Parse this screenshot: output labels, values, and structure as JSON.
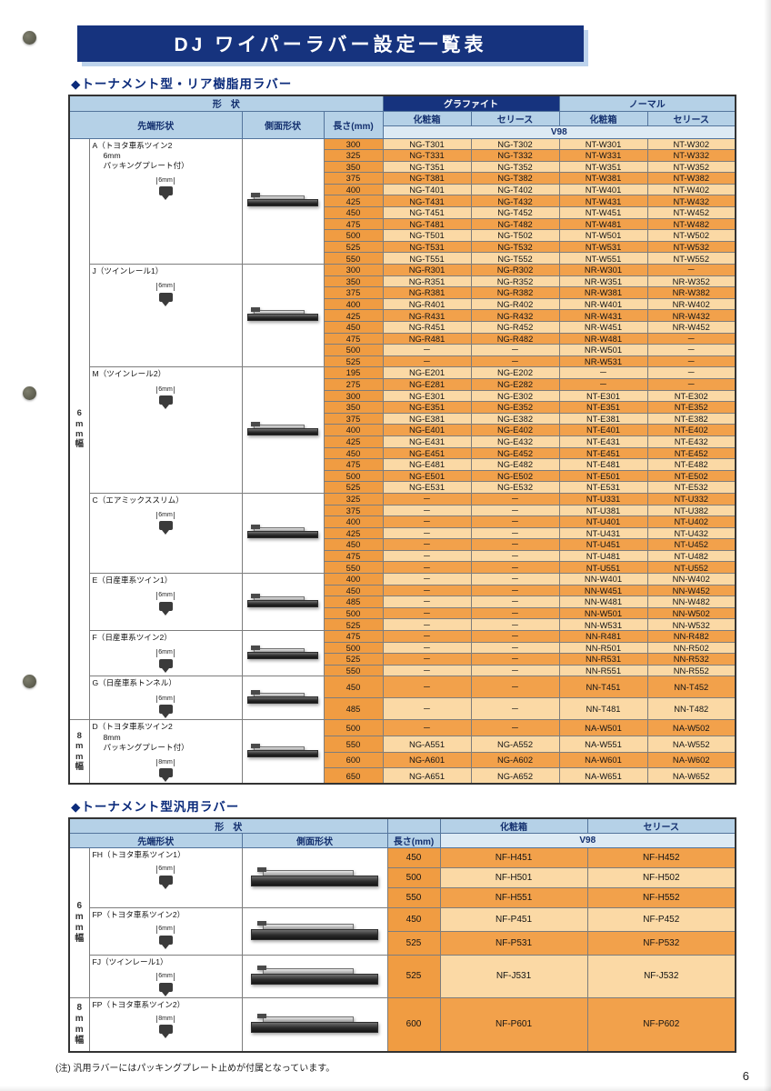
{
  "page": {
    "title": "DJ ワイパーラバー設定一覧表",
    "page_number": "6",
    "footnote": "(注) 汎用ラバーにはパッキングプレート止めが付属となっています。"
  },
  "colors": {
    "banner_bg": "#16337e",
    "header_bg": "#b5d1e7",
    "graphite_header_bg": "#16337e",
    "row_dark_orange": "#f2a14b",
    "row_light_orange": "#fbd9a5",
    "length_col_orange": "#f09c42"
  },
  "table1": {
    "section_title": "◆トーナメント型・リア樹脂用ラバー",
    "headers": {
      "shape": "形　状",
      "tip_shape": "先端形状",
      "side_shape": "側面形状",
      "length": "長さ(mm)",
      "graphite": "グラファイト",
      "normal": "ノーマル",
      "box": "化粧箱",
      "series": "セリース",
      "v98": "V98"
    },
    "width_labels": [
      {
        "label": "6mm幅",
        "from_group": 0,
        "to_group": 6
      },
      {
        "label": "8mm幅",
        "from_group": 7,
        "to_group": 7
      }
    ],
    "groups": [
      {
        "label_lines": [
          "A（トヨタ車系ツイン2",
          "6mm",
          "パッキングプレート付）"
        ],
        "tip_size": "6mm",
        "rows": [
          [
            "300",
            "NG-T301",
            "NG-T302",
            "NT-W301",
            "NT-W302"
          ],
          [
            "325",
            "NG-T331",
            "NG-T332",
            "NT-W331",
            "NT-W332"
          ],
          [
            "350",
            "NG-T351",
            "NG-T352",
            "NT-W351",
            "NT-W352"
          ],
          [
            "375",
            "NG-T381",
            "NG-T382",
            "NT-W381",
            "NT-W382"
          ],
          [
            "400",
            "NG-T401",
            "NG-T402",
            "NT-W401",
            "NT-W402"
          ],
          [
            "425",
            "NG-T431",
            "NG-T432",
            "NT-W431",
            "NT-W432"
          ],
          [
            "450",
            "NG-T451",
            "NG-T452",
            "NT-W451",
            "NT-W452"
          ],
          [
            "475",
            "NG-T481",
            "NG-T482",
            "NT-W481",
            "NT-W482"
          ],
          [
            "500",
            "NG-T501",
            "NG-T502",
            "NT-W501",
            "NT-W502"
          ],
          [
            "525",
            "NG-T531",
            "NG-T532",
            "NT-W531",
            "NT-W532"
          ],
          [
            "550",
            "NG-T551",
            "NG-T552",
            "NT-W551",
            "NT-W552"
          ]
        ]
      },
      {
        "label_lines": [
          "J（ツインレール1）"
        ],
        "tip_size": "6mm",
        "rows": [
          [
            "300",
            "NG-R301",
            "NG-R302",
            "NR-W301",
            "－"
          ],
          [
            "350",
            "NG-R351",
            "NG-R352",
            "NR-W351",
            "NR-W352"
          ],
          [
            "375",
            "NG-R381",
            "NG-R382",
            "NR-W381",
            "NR-W382"
          ],
          [
            "400",
            "NG-R401",
            "NG-R402",
            "NR-W401",
            "NR-W402"
          ],
          [
            "425",
            "NG-R431",
            "NG-R432",
            "NR-W431",
            "NR-W432"
          ],
          [
            "450",
            "NG-R451",
            "NG-R452",
            "NR-W451",
            "NR-W452"
          ],
          [
            "475",
            "NG-R481",
            "NG-R482",
            "NR-W481",
            "－"
          ],
          [
            "500",
            "－",
            "－",
            "NR-W501",
            "－"
          ],
          [
            "525",
            "－",
            "－",
            "NR-W531",
            "－"
          ]
        ]
      },
      {
        "label_lines": [
          "M（ツインレール2）"
        ],
        "tip_size": "6mm",
        "rows": [
          [
            "195",
            "NG-E201",
            "NG-E202",
            "－",
            "－"
          ],
          [
            "275",
            "NG-E281",
            "NG-E282",
            "－",
            "－"
          ],
          [
            "300",
            "NG-E301",
            "NG-E302",
            "NT-E301",
            "NT-E302"
          ],
          [
            "350",
            "NG-E351",
            "NG-E352",
            "NT-E351",
            "NT-E352"
          ],
          [
            "375",
            "NG-E381",
            "NG-E382",
            "NT-E381",
            "NT-E382"
          ],
          [
            "400",
            "NG-E401",
            "NG-E402",
            "NT-E401",
            "NT-E402"
          ],
          [
            "425",
            "NG-E431",
            "NG-E432",
            "NT-E431",
            "NT-E432"
          ],
          [
            "450",
            "NG-E451",
            "NG-E452",
            "NT-E451",
            "NT-E452"
          ],
          [
            "475",
            "NG-E481",
            "NG-E482",
            "NT-E481",
            "NT-E482"
          ],
          [
            "500",
            "NG-E501",
            "NG-E502",
            "NT-E501",
            "NT-E502"
          ],
          [
            "525",
            "NG-E531",
            "NG-E532",
            "NT-E531",
            "NT-E532"
          ]
        ]
      },
      {
        "label_lines": [
          "C（エアミックススリム）"
        ],
        "tip_size": "6mm",
        "rows": [
          [
            "325",
            "－",
            "－",
            "NT-U331",
            "NT-U332"
          ],
          [
            "375",
            "－",
            "－",
            "NT-U381",
            "NT-U382"
          ],
          [
            "400",
            "－",
            "－",
            "NT-U401",
            "NT-U402"
          ],
          [
            "425",
            "－",
            "－",
            "NT-U431",
            "NT-U432"
          ],
          [
            "450",
            "－",
            "－",
            "NT-U451",
            "NT-U452"
          ],
          [
            "475",
            "－",
            "－",
            "NT-U481",
            "NT-U482"
          ],
          [
            "550",
            "－",
            "－",
            "NT-U551",
            "NT-U552"
          ]
        ]
      },
      {
        "label_lines": [
          "E（日産車系ツイン1）"
        ],
        "tip_size": "6mm",
        "rows": [
          [
            "400",
            "－",
            "－",
            "NN-W401",
            "NN-W402"
          ],
          [
            "450",
            "－",
            "－",
            "NN-W451",
            "NN-W452"
          ],
          [
            "485",
            "－",
            "－",
            "NN-W481",
            "NN-W482"
          ],
          [
            "500",
            "－",
            "－",
            "NN-W501",
            "NN-W502"
          ],
          [
            "525",
            "－",
            "－",
            "NN-W531",
            "NN-W532"
          ]
        ]
      },
      {
        "label_lines": [
          "F（日産車系ツイン2）"
        ],
        "tip_size": "6mm",
        "rows": [
          [
            "475",
            "－",
            "－",
            "NN-R481",
            "NN-R482"
          ],
          [
            "500",
            "－",
            "－",
            "NN-R501",
            "NN-R502"
          ],
          [
            "525",
            "－",
            "－",
            "NN-R531",
            "NN-R532"
          ],
          [
            "550",
            "－",
            "－",
            "NN-R551",
            "NN-R552"
          ]
        ]
      },
      {
        "label_lines": [
          "G（日産車系トンネル）"
        ],
        "tip_size": "6mm",
        "rows": [
          [
            "450",
            "－",
            "－",
            "NN-T451",
            "NN-T452"
          ],
          [
            "485",
            "－",
            "－",
            "NN-T481",
            "NN-T482"
          ]
        ]
      },
      {
        "label_lines": [
          "D（トヨタ車系ツイン2",
          "8mm",
          "パッキングプレート付）"
        ],
        "tip_size": "8mm",
        "rows": [
          [
            "500",
            "－",
            "－",
            "NA-W501",
            "NA-W502"
          ],
          [
            "550",
            "NG-A551",
            "NG-A552",
            "NA-W551",
            "NA-W552"
          ],
          [
            "600",
            "NG-A601",
            "NG-A602",
            "NA-W601",
            "NA-W602"
          ],
          [
            "650",
            "NG-A651",
            "NG-A652",
            "NA-W651",
            "NA-W652"
          ]
        ]
      }
    ]
  },
  "table2": {
    "section_title": "◆トーナメント型汎用ラバー",
    "headers": {
      "shape": "形　状",
      "tip_shape": "先端形状",
      "side_shape": "側面形状",
      "length": "長さ(mm)",
      "box": "化粧箱",
      "series": "セリース",
      "v98": "V98"
    },
    "width_labels": [
      {
        "label": "6mm幅",
        "from_group": 0,
        "to_group": 2
      },
      {
        "label": "8mm幅",
        "from_group": 3,
        "to_group": 3
      }
    ],
    "groups": [
      {
        "label_lines": [
          "FH（トヨタ車系ツイン1）"
        ],
        "tip_size": "6mm",
        "rows": [
          [
            "450",
            "NF-H451",
            "NF-H452"
          ],
          [
            "500",
            "NF-H501",
            "NF-H502"
          ],
          [
            "550",
            "NF-H551",
            "NF-H552"
          ]
        ]
      },
      {
        "label_lines": [
          "FP（トヨタ車系ツイン2）"
        ],
        "tip_size": "6mm",
        "rows": [
          [
            "450",
            "NF-P451",
            "NF-P452"
          ],
          [
            "525",
            "NF-P531",
            "NF-P532"
          ]
        ]
      },
      {
        "label_lines": [
          "FJ（ツインレール1）"
        ],
        "tip_size": "6mm",
        "rows": [
          [
            "525",
            "NF-J531",
            "NF-J532"
          ]
        ]
      },
      {
        "label_lines": [
          "FP（トヨタ車系ツイン2）"
        ],
        "tip_size": "8mm",
        "rows": [
          [
            "600",
            "NF-P601",
            "NF-P602"
          ]
        ]
      }
    ]
  }
}
